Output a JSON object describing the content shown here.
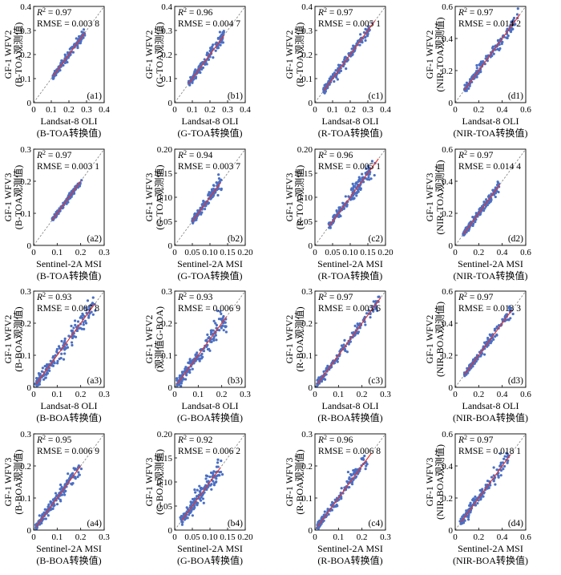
{
  "figure": {
    "point_color": "#4a6fc4",
    "fit_color": "#e8332a",
    "reference_line_color": "#808080",
    "stat_labels": {
      "r2_symbol": "R",
      "r2_power": "2",
      "equals": " = ",
      "rmse_label": "RMSE"
    }
  },
  "chart_data": [
    {
      "id": "a1",
      "type": "scatter",
      "panel_label": "(a1)",
      "xlim": [
        0,
        0.4
      ],
      "ylim": [
        0,
        0.4
      ],
      "xticks": [
        "0",
        "0.1",
        "0.2",
        "0.3",
        "0.4"
      ],
      "yticks": [
        "0",
        "0.1",
        "0.2",
        "0.3",
        "0.4"
      ],
      "xlabel": [
        "Landsat-8 OLI",
        "(B-TOA转换值)"
      ],
      "ylabel": [
        "GF-1 WFV2",
        "(B-TOA观测值)"
      ],
      "r2": "0.97",
      "rmse": "0.003 8",
      "data_range": [
        0.11,
        0.29
      ],
      "fit_end": 0.29,
      "spread": 0.008
    },
    {
      "id": "b1",
      "type": "scatter",
      "panel_label": "(b1)",
      "xlim": [
        0,
        0.4
      ],
      "ylim": [
        0,
        0.4
      ],
      "xticks": [
        "0",
        "0.1",
        "0.2",
        "0.3",
        "0.4"
      ],
      "yticks": [
        "0",
        "0.1",
        "0.2",
        "0.3",
        "0.4"
      ],
      "xlabel": [
        "Landsat-8 OLI",
        "(G-TOA转换值)"
      ],
      "ylabel": [
        "GF-1 WFV2",
        "(G-TOA观测值)"
      ],
      "r2": "0.96",
      "rmse": "0.004 7",
      "data_range": [
        0.08,
        0.28
      ],
      "fit_end": 0.28,
      "spread": 0.01
    },
    {
      "id": "c1",
      "type": "scatter",
      "panel_label": "(c1)",
      "xlim": [
        0,
        0.4
      ],
      "ylim": [
        0,
        0.4
      ],
      "xticks": [
        "0",
        "0.1",
        "0.2",
        "0.3",
        "0.4"
      ],
      "yticks": [
        "0",
        "0.1",
        "0.2",
        "0.3",
        "0.4"
      ],
      "xlabel": [
        "Landsat-8 OLI",
        "(R-TOA转换值)"
      ],
      "ylabel": [
        "GF-1 WFV2",
        "(R-TOA观测值)"
      ],
      "r2": "0.97",
      "rmse": "0.005 1",
      "data_range": [
        0.05,
        0.33
      ],
      "fit_end": 0.34,
      "spread": 0.011
    },
    {
      "id": "d1",
      "type": "scatter",
      "panel_label": "(d1)",
      "xlim": [
        0,
        0.6
      ],
      "ylim": [
        0,
        0.6
      ],
      "xticks": [
        "0",
        "0.2",
        "0.4",
        "0.6"
      ],
      "yticks": [
        "0",
        "0.2",
        "0.4",
        "0.6"
      ],
      "xlabel": [
        "Landsat-8 OLI",
        "(NIR-TOA转换值)"
      ],
      "ylabel": [
        "GF-1 WFV2",
        "(NIR-TOA观测值)"
      ],
      "r2": "0.97",
      "rmse": "0.014 2",
      "data_range": [
        0.08,
        0.55
      ],
      "fit_end": 0.55,
      "spread": 0.018
    },
    {
      "id": "a2",
      "type": "scatter",
      "panel_label": "(a2)",
      "xlim": [
        0,
        0.3
      ],
      "ylim": [
        0,
        0.3
      ],
      "xticks": [
        "0",
        "0.1",
        "0.2",
        "0.3"
      ],
      "yticks": [
        "0",
        "0.1",
        "0.2",
        "0.3"
      ],
      "xlabel": [
        "Sentinel-2A MSI",
        "(B-TOA转换值)"
      ],
      "ylabel": [
        "GF-1 WFV3",
        "(B-TOA观测值)"
      ],
      "r2": "0.97",
      "rmse": "0.003 1",
      "data_range": [
        0.08,
        0.2
      ],
      "fit_end": 0.2,
      "spread": 0.004
    },
    {
      "id": "b2",
      "type": "scatter",
      "panel_label": "(b2)",
      "xlim": [
        0,
        0.2
      ],
      "ylim": [
        0,
        0.2
      ],
      "xticks": [
        "0",
        "0.05",
        "0.10",
        "0.15",
        "0.20"
      ],
      "yticks": [
        "0",
        "0.05",
        "0.10",
        "0.15",
        "0.20"
      ],
      "xlabel": [
        "Sentinel-2A MSI",
        "(G-TOA转换值)"
      ],
      "ylabel": [
        "GF-1 WFV3",
        "(G-TOA观测值)"
      ],
      "r2": "0.94",
      "rmse": "0.003 7",
      "data_range": [
        0.05,
        0.13
      ],
      "fit_end": 0.13,
      "spread": 0.005
    },
    {
      "id": "c2",
      "type": "scatter",
      "panel_label": "(c2)",
      "xlim": [
        0,
        0.2
      ],
      "ylim": [
        0,
        0.2
      ],
      "xticks": [
        "0",
        "0.05",
        "0.10",
        "0.15",
        "0.20"
      ],
      "yticks": [
        "0",
        "0.05",
        "0.10",
        "0.15",
        "0.20"
      ],
      "xlabel": [
        "Sentinel-2A MSI",
        "(R-TOA转换值)"
      ],
      "ylabel": [
        "GF-1 WFV3",
        "(R-TOA观测值)"
      ],
      "r2": "0.96",
      "rmse": "0.005 1",
      "data_range": [
        0.04,
        0.17
      ],
      "fit_end": 0.18,
      "spread": 0.007
    },
    {
      "id": "d2",
      "type": "scatter",
      "panel_label": "(d2)",
      "xlim": [
        0,
        0.6
      ],
      "ylim": [
        0,
        0.6
      ],
      "xticks": [
        "0",
        "0.2",
        "0.4",
        "0.6"
      ],
      "yticks": [
        "0",
        "0.2",
        "0.4",
        "0.6"
      ],
      "xlabel": [
        "Sentinel-2A MSI",
        "(NIR-TOA转换值)"
      ],
      "ylabel": [
        "GF-1 WFV3",
        "(NIR-TOA观测值)"
      ],
      "r2": "0.97",
      "rmse": "0.014 4",
      "data_range": [
        0.07,
        0.38
      ],
      "fit_end": 0.38,
      "spread": 0.014
    },
    {
      "id": "a3",
      "type": "scatter",
      "panel_label": "(a3)",
      "xlim": [
        0,
        0.3
      ],
      "ylim": [
        0,
        0.3
      ],
      "xticks": [
        "0",
        "0.1",
        "0.2",
        "0.3"
      ],
      "yticks": [
        "0",
        "0.1",
        "0.2",
        "0.3"
      ],
      "xlabel": [
        "Landsat-8 OLI",
        "(B-BOA转换值)"
      ],
      "ylabel": [
        "GF-1 WFV2",
        "(B-BOA观测值)"
      ],
      "r2": "0.93",
      "rmse": "0.007 8",
      "data_range": [
        0.01,
        0.25
      ],
      "fit_end": 0.26,
      "spread": 0.014
    },
    {
      "id": "b3",
      "type": "scatter",
      "panel_label": "(b3)",
      "xlim": [
        0,
        0.3
      ],
      "ylim": [
        0,
        0.3
      ],
      "xticks": [
        "0",
        "0.1",
        "0.2",
        "0.3"
      ],
      "yticks": [
        "0",
        "0.1",
        "0.2",
        "0.3"
      ],
      "xlabel": [
        "Landsat-8 OLI",
        "(G-BOA转换值)"
      ],
      "ylabel": [
        "GF-1 WFV2",
        "(观测值G-BOA)"
      ],
      "r2": "0.93",
      "rmse": "0.006 9",
      "data_range": [
        0.01,
        0.22
      ],
      "fit_end": 0.22,
      "spread": 0.013
    },
    {
      "id": "c3",
      "type": "scatter",
      "panel_label": "(c3)",
      "xlim": [
        0,
        0.3
      ],
      "ylim": [
        0,
        0.3
      ],
      "xticks": [
        "0",
        "0.1",
        "0.2",
        "0.3"
      ],
      "yticks": [
        "0",
        "0.1",
        "0.2",
        "0.3"
      ],
      "xlabel": [
        "Landsat-8 OLI",
        "(R-BOA转换值)"
      ],
      "ylabel": [
        "GF-1 WFV2",
        "(R-BOA观测值)"
      ],
      "r2": "0.97",
      "rmse": "0.005 6",
      "data_range": [
        0.01,
        0.27
      ],
      "fit_end": 0.28,
      "spread": 0.008
    },
    {
      "id": "d3",
      "type": "scatter",
      "panel_label": "(d3)",
      "xlim": [
        0,
        0.6
      ],
      "ylim": [
        0,
        0.6
      ],
      "xticks": [
        "0",
        "0.2",
        "0.4",
        "0.6"
      ],
      "yticks": [
        "0",
        "0.2",
        "0.4",
        "0.6"
      ],
      "xlabel": [
        "Landsat-8 OLI",
        "(NIR-BOA转换值)"
      ],
      "ylabel": [
        "GF-1 WFV2",
        "(NIR-BOA观测值)"
      ],
      "r2": "0.97",
      "rmse": "0.013 3",
      "data_range": [
        0.08,
        0.48
      ],
      "fit_end": 0.48,
      "spread": 0.015
    },
    {
      "id": "a4",
      "type": "scatter",
      "panel_label": "(a4)",
      "xlim": [
        0,
        0.3
      ],
      "ylim": [
        0,
        0.3
      ],
      "xticks": [
        "0",
        "0.1",
        "0.2",
        "0.3"
      ],
      "yticks": [
        "0",
        "0.1",
        "0.2",
        "0.3"
      ],
      "xlabel": [
        "Sentinel-2A MSI",
        "(B-BOA转换值)"
      ],
      "ylabel": [
        "GF-1 WFV3",
        "(B-BOA观测值)"
      ],
      "r2": "0.95",
      "rmse": "0.006 9",
      "data_range": [
        0.01,
        0.2
      ],
      "fit_end": 0.2,
      "spread": 0.009
    },
    {
      "id": "b4",
      "type": "scatter",
      "panel_label": "(b4)",
      "xlim": [
        0,
        0.2
      ],
      "ylim": [
        0,
        0.2
      ],
      "xticks": [
        "0",
        "0.05",
        "0.10",
        "0.15",
        "0.20"
      ],
      "yticks": [
        "0",
        "0.05",
        "0.10",
        "0.15",
        "0.20"
      ],
      "xlabel": [
        "Sentinel-2A MSI",
        "(G-BOA转换值)"
      ],
      "ylabel": [
        "GF-1 WFV3",
        "(G-BOA观测值)"
      ],
      "r2": "0.92",
      "rmse": "0.006 2",
      "data_range": [
        0.02,
        0.13
      ],
      "fit_end": 0.13,
      "spread": 0.009
    },
    {
      "id": "c4",
      "type": "scatter",
      "panel_label": "(c4)",
      "xlim": [
        0,
        0.3
      ],
      "ylim": [
        0,
        0.3
      ],
      "xticks": [
        "0",
        "0.1",
        "0.2",
        "0.3"
      ],
      "yticks": [
        "0",
        "0.1",
        "0.2",
        "0.3"
      ],
      "xlabel": [
        "Sentinel-2A MSI",
        "(R-BOA转换值)"
      ],
      "ylabel": [
        "GF-1 WFV3",
        "(R-BOA观测值)"
      ],
      "r2": "0.96",
      "rmse": "0.006 8",
      "data_range": [
        0.01,
        0.23
      ],
      "fit_end": 0.24,
      "spread": 0.009
    },
    {
      "id": "d4",
      "type": "scatter",
      "panel_label": "(d4)",
      "xlim": [
        0,
        0.6
      ],
      "ylim": [
        0,
        0.6
      ],
      "xticks": [
        "0",
        "0.2",
        "0.4",
        "0.6"
      ],
      "yticks": [
        "0",
        "0.2",
        "0.4",
        "0.6"
      ],
      "xlabel": [
        "Sentinel-2A MSI",
        "(NIR-BOA转换值)"
      ],
      "ylabel": [
        "GF-1 WFV3",
        "(NIR-BOA观测值)"
      ],
      "r2": "0.97",
      "rmse": "0.018 1",
      "data_range": [
        0.05,
        0.46
      ],
      "fit_end": 0.47,
      "spread": 0.02
    }
  ]
}
